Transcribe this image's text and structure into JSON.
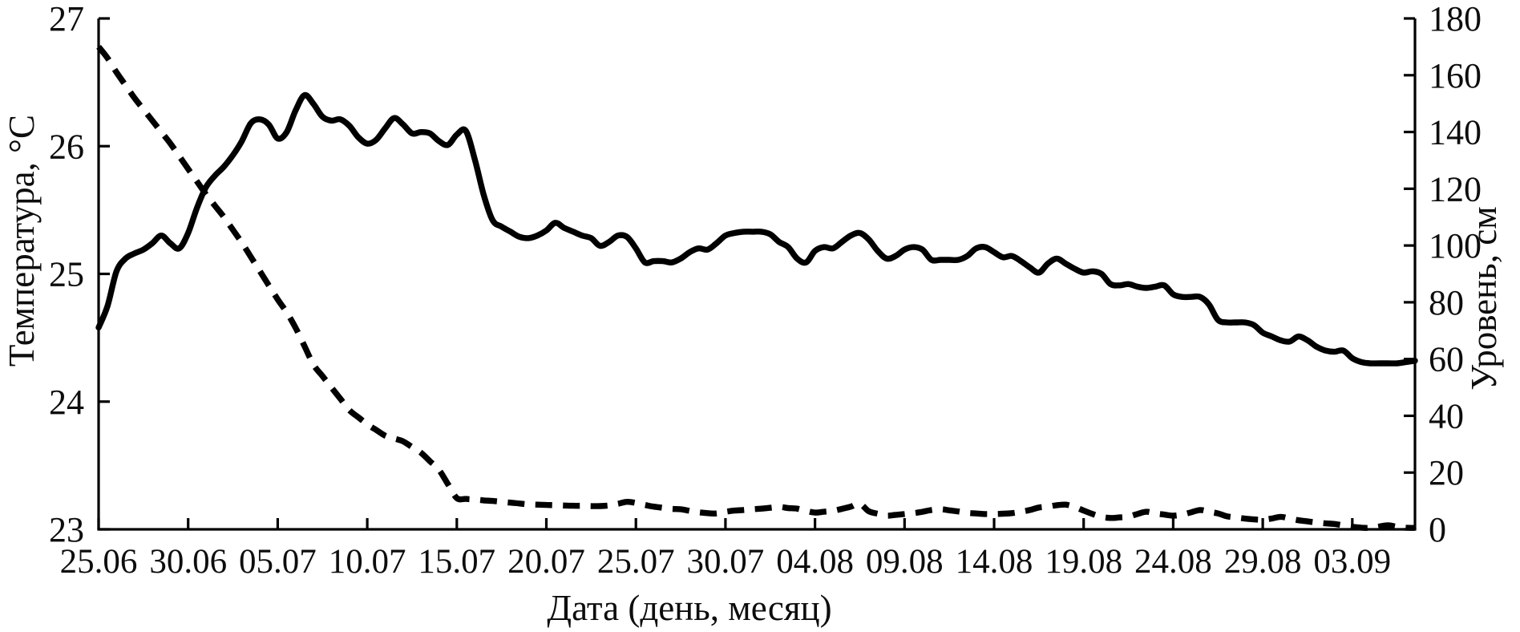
{
  "chart_data": {
    "type": "line",
    "title": "",
    "xlabel": "Дата (день, месяц)",
    "x_axis": {
      "tick_labels": [
        "25.06",
        "30.06",
        "05.07",
        "10.07",
        "15.07",
        "20.07",
        "25.07",
        "30.07",
        "04.08",
        "09.08",
        "14.08",
        "19.08",
        "24.08",
        "29.08",
        "03.09"
      ],
      "tick_interval_days": 5,
      "span_days": 73.5
    },
    "left_axis": {
      "label": "Температура, °С",
      "min": 23,
      "max": 27,
      "ticks": [
        23,
        24,
        25,
        26,
        27
      ]
    },
    "right_axis": {
      "label": "Уровень, см",
      "min": 0,
      "max": 180,
      "ticks": [
        0,
        20,
        40,
        60,
        80,
        100,
        120,
        140,
        160,
        180
      ]
    },
    "grid": false,
    "legend": "none",
    "colors": {
      "line": "#000000",
      "background": "#ffffff"
    },
    "x_start_day": 0,
    "x_step_days": 0.5,
    "series": [
      {
        "name": "Температура, °С",
        "axis": "left",
        "style": "solid",
        "values": [
          24.58,
          24.75,
          25.02,
          25.12,
          25.16,
          25.19,
          25.24,
          25.3,
          25.24,
          25.2,
          25.32,
          25.52,
          25.68,
          25.77,
          25.84,
          25.93,
          26.04,
          26.18,
          26.21,
          26.17,
          26.06,
          26.11,
          26.28,
          26.4,
          26.33,
          26.23,
          26.2,
          26.21,
          26.16,
          26.07,
          26.02,
          26.05,
          26.14,
          26.22,
          26.17,
          26.1,
          26.11,
          26.1,
          26.04,
          26.01,
          26.09,
          26.12,
          25.9,
          25.62,
          25.42,
          25.37,
          25.33,
          25.29,
          25.28,
          25.3,
          25.34,
          25.4,
          25.36,
          25.33,
          25.3,
          25.28,
          25.22,
          25.25,
          25.3,
          25.29,
          25.2,
          25.09,
          25.1,
          25.1,
          25.09,
          25.12,
          25.17,
          25.2,
          25.19,
          25.24,
          25.3,
          25.32,
          25.33,
          25.33,
          25.33,
          25.31,
          25.25,
          25.21,
          25.12,
          25.09,
          25.18,
          25.21,
          25.2,
          25.25,
          25.3,
          25.32,
          25.27,
          25.18,
          25.12,
          25.14,
          25.19,
          25.21,
          25.19,
          25.11,
          25.11,
          25.11,
          25.11,
          25.14,
          25.2,
          25.21,
          25.17,
          25.13,
          25.14,
          25.1,
          25.05,
          25.01,
          25.08,
          25.12,
          25.08,
          25.04,
          25.01,
          25.02,
          25.0,
          24.92,
          24.91,
          24.92,
          24.9,
          24.89,
          24.9,
          24.91,
          24.84,
          24.82,
          24.82,
          24.82,
          24.76,
          24.64,
          24.62,
          24.62,
          24.62,
          24.6,
          24.54,
          24.51,
          24.48,
          24.47,
          24.51,
          24.48,
          24.43,
          24.4,
          24.39,
          24.4,
          24.34,
          24.31,
          24.3,
          24.3,
          24.3,
          24.3,
          24.31,
          24.32
        ]
      },
      {
        "name": "Уровень, см",
        "axis": "right",
        "style": "dashed",
        "values": [
          170,
          166,
          161,
          156.5,
          152,
          148,
          144,
          140,
          136,
          131.5,
          127,
          122.5,
          118,
          114,
          110,
          105.5,
          101,
          96,
          91,
          86,
          81,
          76.5,
          71,
          64.5,
          58,
          54,
          50,
          46,
          42,
          39.5,
          37,
          35,
          33,
          32,
          31,
          29,
          27,
          24,
          21,
          16,
          11,
          10.7,
          10.5,
          10.2,
          10,
          9.7,
          9.4,
          9.1,
          8.8,
          8.7,
          8.6,
          8.5,
          8.4,
          8.3,
          8.3,
          8.2,
          8.2,
          8.4,
          9.0,
          9.7,
          9.3,
          8.6,
          8.0,
          7.6,
          7.2,
          7.1,
          6.5,
          6.0,
          5.7,
          5.6,
          6.2,
          6.6,
          6.8,
          7.1,
          7.3,
          7.6,
          7.9,
          7.5,
          7.3,
          6.5,
          5.9,
          6.2,
          6.5,
          7.2,
          8.0,
          9.0,
          6.4,
          5.5,
          4.8,
          5.1,
          5.4,
          5.7,
          6.2,
          6.8,
          7.1,
          6.7,
          6.3,
          5.8,
          5.6,
          5.4,
          5.4,
          5.5,
          5.7,
          6.2,
          6.8,
          7.7,
          8.0,
          8.5,
          8.7,
          7.9,
          6.6,
          5.4,
          4.4,
          4.0,
          4.2,
          4.5,
          5.4,
          6.2,
          5.6,
          5.2,
          4.8,
          5.2,
          6.0,
          6.8,
          6.2,
          5.6,
          4.6,
          4.2,
          3.8,
          3.5,
          3.4,
          3.8,
          4.4,
          3.8,
          3.2,
          2.8,
          2.4,
          2.1,
          1.9,
          1.4,
          0.9,
          0.6,
          0.5,
          1.0,
          1.4,
          0.9,
          0.6,
          0.5
        ]
      }
    ]
  }
}
